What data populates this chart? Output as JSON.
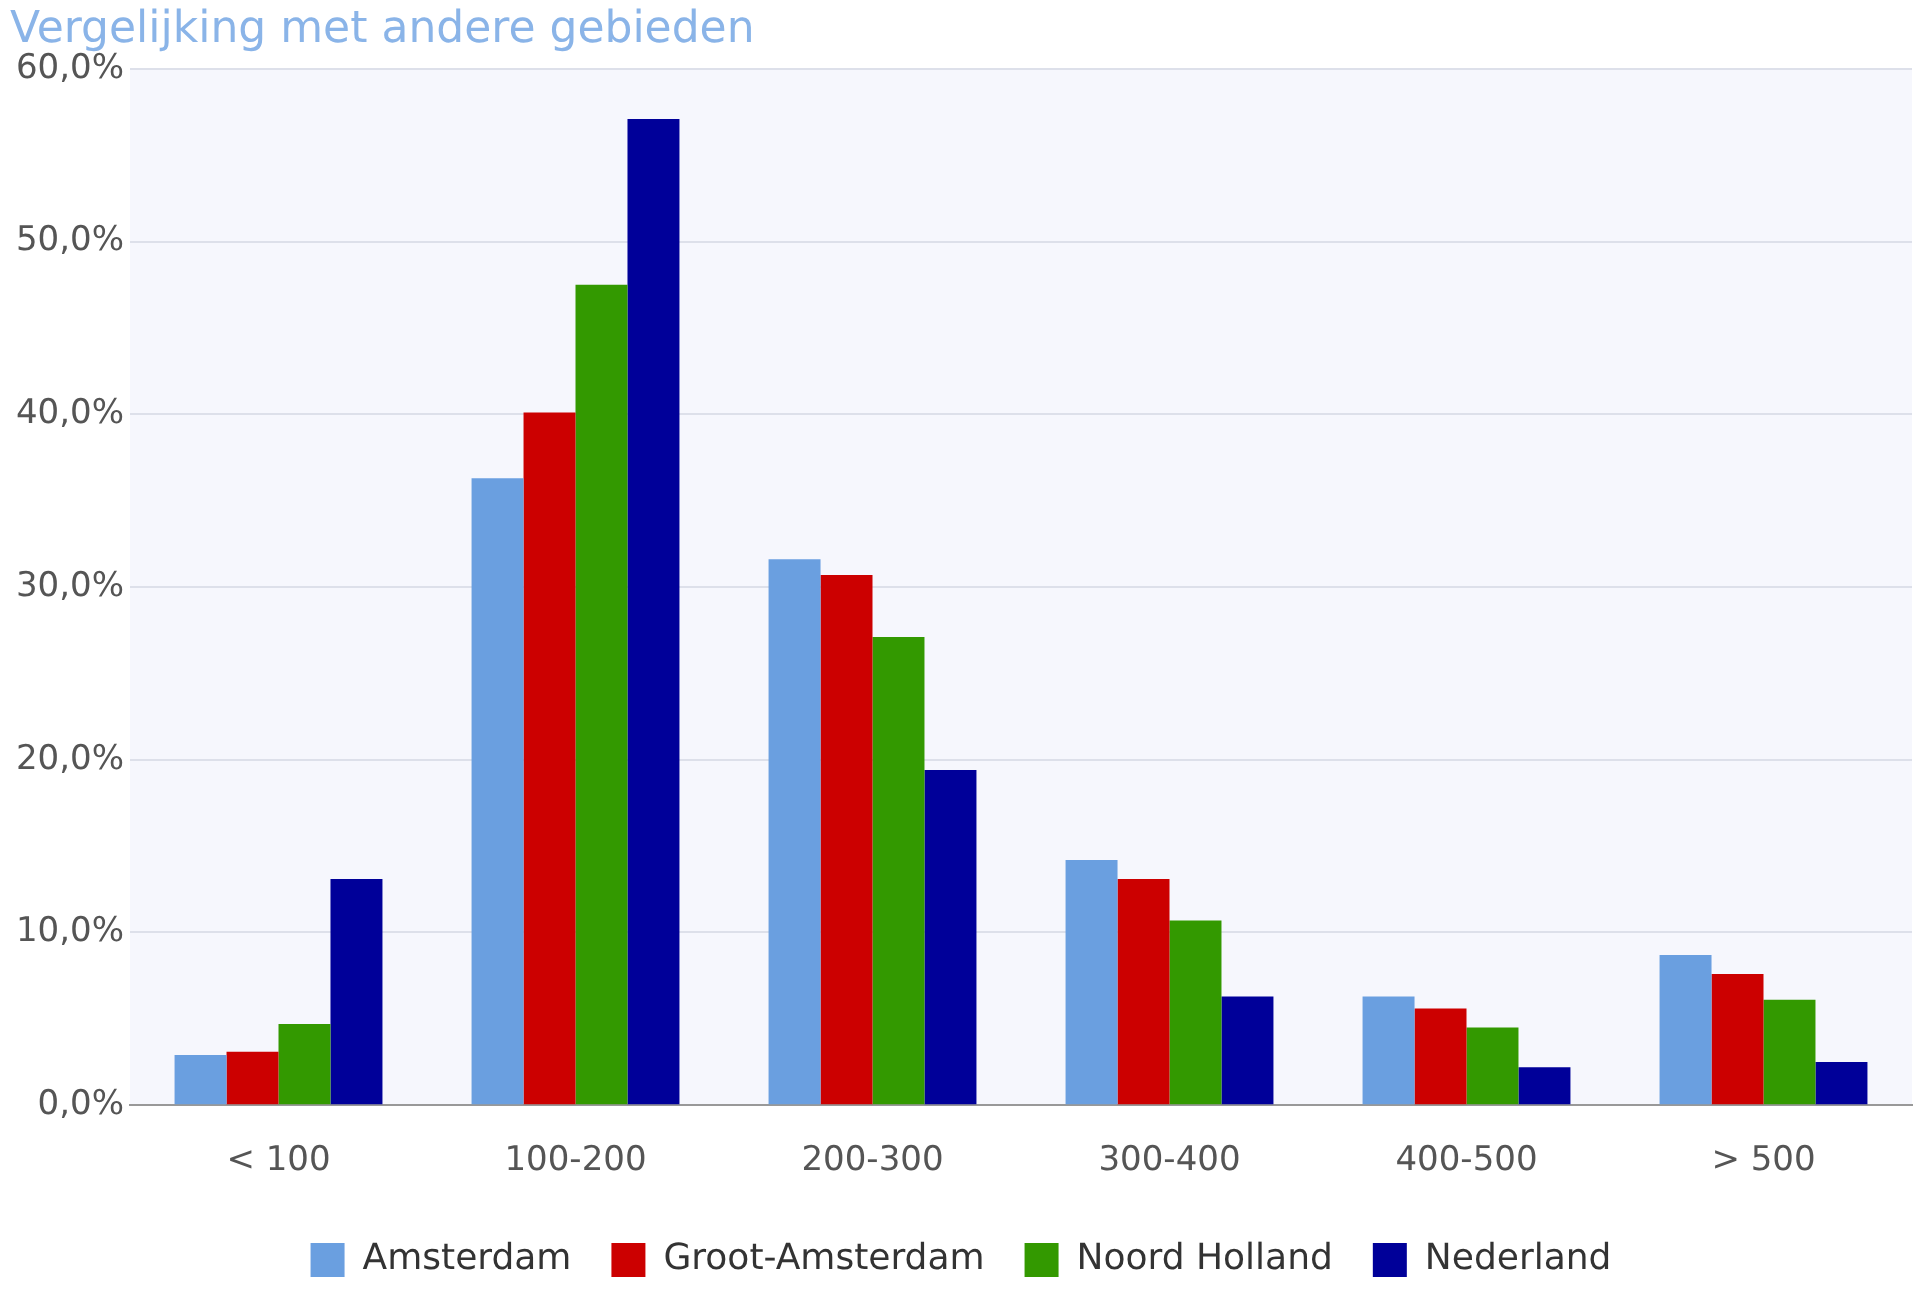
{
  "chart_data": {
    "type": "bar",
    "title": "Vergelijking met andere gebieden",
    "categories": [
      "< 100",
      "100-200",
      "200-300",
      "300-400",
      "400-500",
      "> 500"
    ],
    "series": [
      {
        "name": "Amsterdam",
        "color": "#6a9fe0",
        "values": [
          2.9,
          36.3,
          31.6,
          14.2,
          6.3,
          8.7
        ]
      },
      {
        "name": "Groot-Amsterdam",
        "color": "#cc0000",
        "values": [
          3.1,
          40.1,
          30.7,
          13.1,
          5.6,
          7.6
        ]
      },
      {
        "name": "Noord Holland",
        "color": "#339900",
        "values": [
          4.7,
          47.5,
          27.1,
          10.7,
          4.5,
          6.1
        ]
      },
      {
        "name": "Nederland",
        "color": "#000099",
        "values": [
          13.1,
          57.1,
          19.4,
          6.3,
          2.2,
          2.5
        ]
      }
    ],
    "ylim": [
      0,
      60
    ],
    "yticks": [
      {
        "value": 0,
        "label": "0,0%"
      },
      {
        "value": 10,
        "label": "10,0%"
      },
      {
        "value": 20,
        "label": "20,0%"
      },
      {
        "value": 30,
        "label": "30,0%"
      },
      {
        "value": 40,
        "label": "40,0%"
      },
      {
        "value": 50,
        "label": "50,0%"
      },
      {
        "value": 60,
        "label": "60,0%"
      }
    ],
    "grid": "y",
    "legend": "bottom"
  }
}
